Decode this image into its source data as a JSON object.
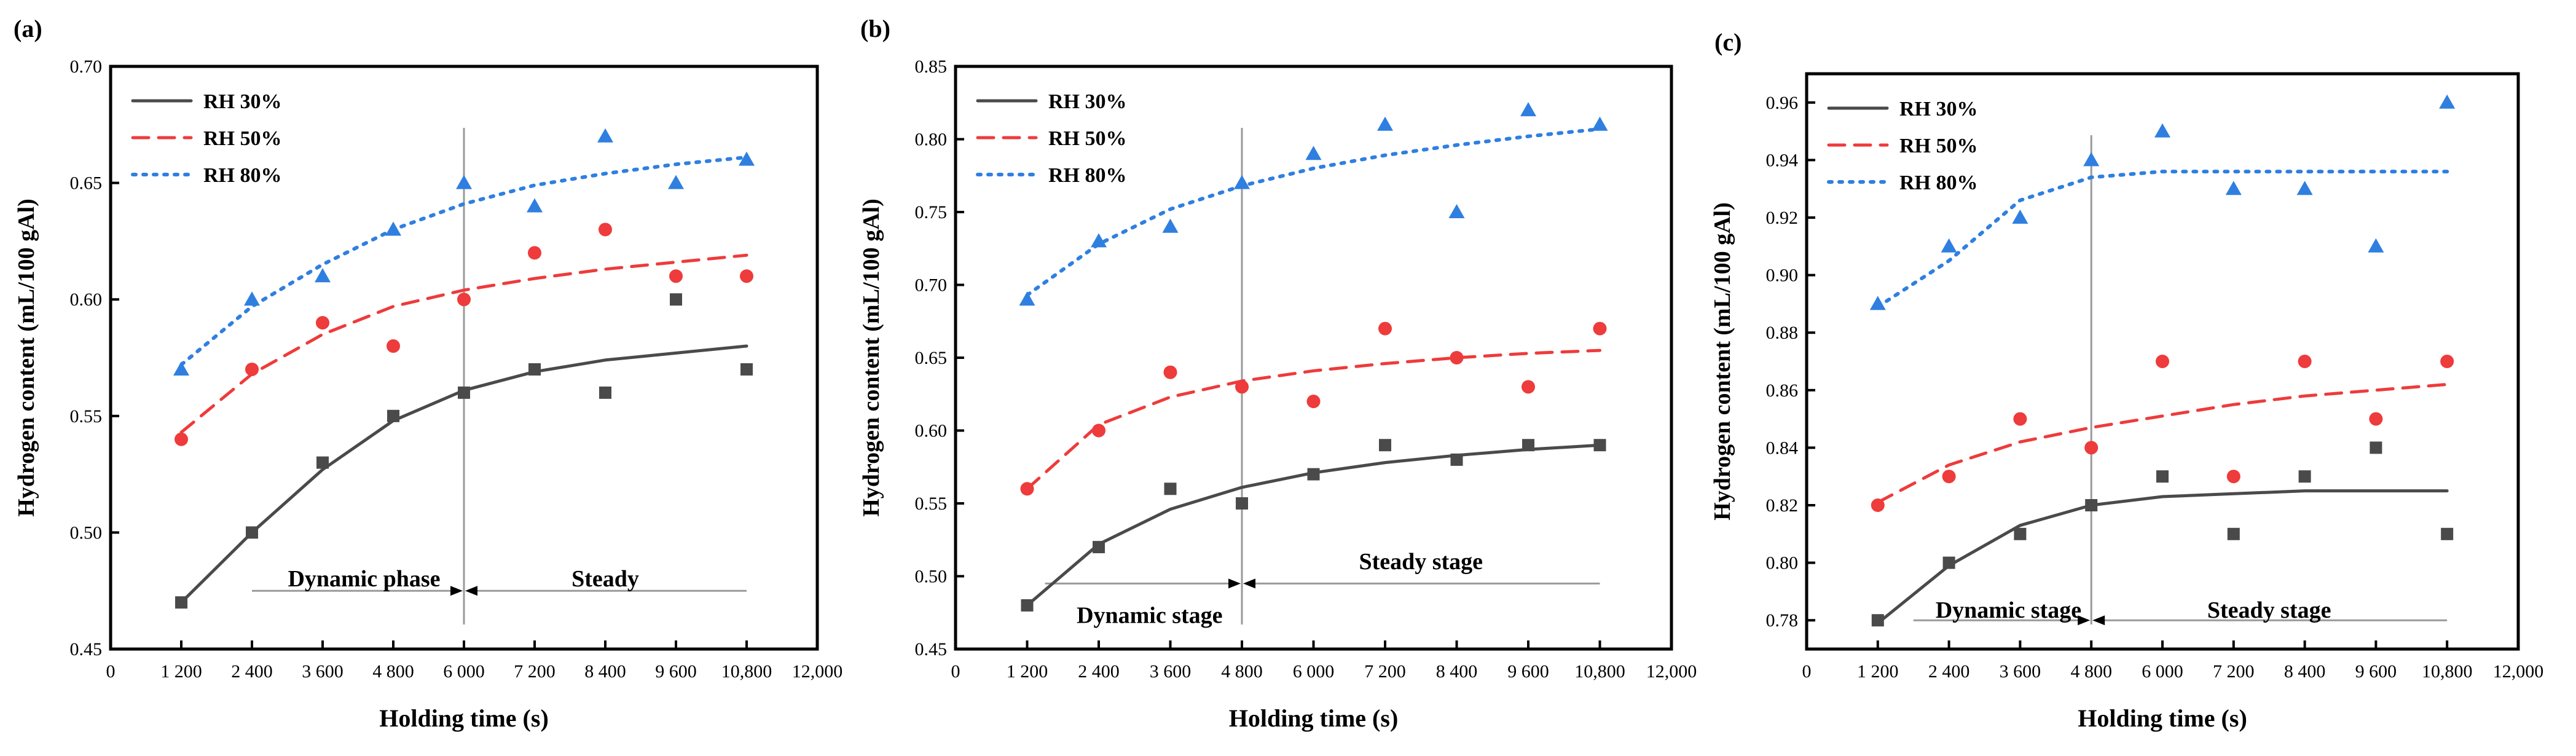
{
  "chart_data": [
    {
      "panel": "(a)",
      "type": "scatter",
      "xlabel": "Holding time (s)",
      "ylabel": "Hydrogen content (mL/100 gAl)",
      "xlim": [
        0,
        12000
      ],
      "ylim": [
        0.45,
        0.7
      ],
      "xticks": [
        0,
        1200,
        2400,
        3600,
        4800,
        6000,
        7200,
        8400,
        9600,
        10800,
        12000
      ],
      "xtick_labels": [
        "0",
        "1 200",
        "2 400",
        "3 600",
        "4 800",
        "6 000",
        "7 200",
        "8 400",
        "9 600",
        "10,800",
        "12,000"
      ],
      "yticks": [
        0.45,
        0.5,
        0.55,
        0.6,
        0.65,
        0.7
      ],
      "ytick_labels": [
        "0.45",
        "0.50",
        "0.55",
        "0.60",
        "0.65",
        "0.70"
      ],
      "x": [
        1200,
        2400,
        3600,
        4800,
        6000,
        7200,
        8400,
        9600,
        10800
      ],
      "series": [
        {
          "name": "RH 30%",
          "marker": "square",
          "color": "#4a4a4a",
          "values": [
            0.47,
            0.5,
            0.53,
            0.55,
            0.56,
            0.57,
            0.56,
            0.6,
            0.57
          ],
          "fit": [
            [
              1200,
              0.47
            ],
            [
              2400,
              0.5
            ],
            [
              3600,
              0.527
            ],
            [
              4800,
              0.548
            ],
            [
              6000,
              0.561
            ],
            [
              7200,
              0.569
            ],
            [
              8400,
              0.574
            ],
            [
              9600,
              0.577
            ],
            [
              10800,
              0.58
            ]
          ]
        },
        {
          "name": "RH 50%",
          "marker": "circle",
          "color": "#ee3b3b",
          "values": [
            0.54,
            0.57,
            0.59,
            0.58,
            0.6,
            0.62,
            0.63,
            0.61,
            0.61
          ],
          "fit": [
            [
              1200,
              0.543
            ],
            [
              2400,
              0.568
            ],
            [
              3600,
              0.585
            ],
            [
              4800,
              0.597
            ],
            [
              6000,
              0.604
            ],
            [
              7200,
              0.609
            ],
            [
              8400,
              0.613
            ],
            [
              9600,
              0.616
            ],
            [
              10800,
              0.619
            ]
          ]
        },
        {
          "name": "RH 80%",
          "marker": "triangle",
          "color": "#2f7fe0",
          "values": [
            0.57,
            0.6,
            0.61,
            0.63,
            0.65,
            0.64,
            0.67,
            0.65,
            0.66
          ],
          "fit": [
            [
              1200,
              0.572
            ],
            [
              2400,
              0.597
            ],
            [
              3600,
              0.615
            ],
            [
              4800,
              0.63
            ],
            [
              6000,
              0.641
            ],
            [
              7200,
              0.649
            ],
            [
              8400,
              0.654
            ],
            [
              9600,
              0.658
            ],
            [
              10800,
              0.661
            ]
          ]
        }
      ],
      "divider_x": 6000,
      "phase_y": 0.475,
      "phases": {
        "left": "Dynamic phase",
        "right": "Steady"
      },
      "phase_start": 2400,
      "phase_end": 10800,
      "label_y": 0.48
    },
    {
      "panel": "(b)",
      "type": "scatter",
      "xlabel": "Holding time (s)",
      "ylabel": "Hydrogen content (mL/100 gAl)",
      "xlim": [
        0,
        12000
      ],
      "ylim": [
        0.45,
        0.85
      ],
      "xticks": [
        0,
        1200,
        2400,
        3600,
        4800,
        6000,
        7200,
        8400,
        9600,
        10800,
        12000
      ],
      "xtick_labels": [
        "0",
        "1 200",
        "2 400",
        "3 600",
        "4 800",
        "6 000",
        "7 200",
        "8 400",
        "9 600",
        "10,800",
        "12,000"
      ],
      "yticks": [
        0.45,
        0.5,
        0.55,
        0.6,
        0.65,
        0.7,
        0.75,
        0.8,
        0.85
      ],
      "ytick_labels": [
        "0.45",
        "0.50",
        "0.55",
        "0.60",
        "0.65",
        "0.70",
        "0.75",
        "0.80",
        "0.85"
      ],
      "x": [
        1200,
        2400,
        3600,
        4800,
        6000,
        7200,
        8400,
        9600,
        10800
      ],
      "series": [
        {
          "name": "RH 30%",
          "marker": "square",
          "color": "#4a4a4a",
          "values": [
            0.48,
            0.52,
            0.56,
            0.55,
            0.57,
            0.59,
            0.58,
            0.59,
            0.59
          ],
          "fit": [
            [
              1200,
              0.48
            ],
            [
              2400,
              0.522
            ],
            [
              3600,
              0.546
            ],
            [
              4800,
              0.561
            ],
            [
              6000,
              0.571
            ],
            [
              7200,
              0.578
            ],
            [
              8400,
              0.583
            ],
            [
              9600,
              0.587
            ],
            [
              10800,
              0.59
            ]
          ]
        },
        {
          "name": "RH 50%",
          "marker": "circle",
          "color": "#ee3b3b",
          "values": [
            0.56,
            0.6,
            0.64,
            0.63,
            0.62,
            0.67,
            0.65,
            0.63,
            0.67
          ],
          "fit": [
            [
              1200,
              0.56
            ],
            [
              2400,
              0.604
            ],
            [
              3600,
              0.623
            ],
            [
              4800,
              0.634
            ],
            [
              6000,
              0.641
            ],
            [
              7200,
              0.646
            ],
            [
              8400,
              0.65
            ],
            [
              9600,
              0.653
            ],
            [
              10800,
              0.655
            ]
          ]
        },
        {
          "name": "RH 80%",
          "marker": "triangle",
          "color": "#2f7fe0",
          "values": [
            0.69,
            0.73,
            0.74,
            0.77,
            0.79,
            0.81,
            0.75,
            0.82,
            0.81
          ],
          "fit": [
            [
              1200,
              0.693
            ],
            [
              2400,
              0.728
            ],
            [
              3600,
              0.752
            ],
            [
              4800,
              0.768
            ],
            [
              6000,
              0.78
            ],
            [
              7200,
              0.789
            ],
            [
              8400,
              0.796
            ],
            [
              9600,
              0.802
            ],
            [
              10800,
              0.807
            ]
          ]
        }
      ],
      "divider_x": 4800,
      "phase_y": 0.495,
      "phases": {
        "left": "Dynamic stage",
        "right": "Steady stage"
      },
      "phase_start": 1500,
      "phase_end": 10800,
      "label_y_left": 0.473,
      "label_y_right": 0.51
    },
    {
      "panel": "(c)",
      "type": "scatter",
      "xlabel": "Holding time (s)",
      "ylabel": "Hydrogen content (mL/100 gAl)",
      "xlim": [
        0,
        12000
      ],
      "ylim": [
        0.77,
        0.97
      ],
      "xticks": [
        0,
        1200,
        2400,
        3600,
        4800,
        6000,
        7200,
        8400,
        9600,
        10800,
        12000
      ],
      "xtick_labels": [
        "0",
        "1 200",
        "2 400",
        "3 600",
        "4 800",
        "6 000",
        "7 200",
        "8 400",
        "9 600",
        "10,800",
        "12,000"
      ],
      "yticks": [
        0.78,
        0.8,
        0.82,
        0.84,
        0.86,
        0.88,
        0.9,
        0.92,
        0.94,
        0.96
      ],
      "ytick_labels": [
        "0.78",
        "0.80",
        "0.82",
        "0.84",
        "0.86",
        "0.88",
        "0.90",
        "0.92",
        "0.94",
        "0.96"
      ],
      "x": [
        1200,
        2400,
        3600,
        4800,
        6000,
        7200,
        8400,
        9600,
        10800
      ],
      "series": [
        {
          "name": "RH 30%",
          "marker": "square",
          "color": "#4a4a4a",
          "values": [
            0.78,
            0.8,
            0.81,
            0.82,
            0.83,
            0.81,
            0.83,
            0.84,
            0.81
          ],
          "fit": [
            [
              1200,
              0.779
            ],
            [
              2400,
              0.799
            ],
            [
              3600,
              0.813
            ],
            [
              4800,
              0.82
            ],
            [
              6000,
              0.823
            ],
            [
              7200,
              0.824
            ],
            [
              8400,
              0.825
            ],
            [
              9600,
              0.825
            ],
            [
              10800,
              0.825
            ]
          ]
        },
        {
          "name": "RH 50%",
          "marker": "circle",
          "color": "#ee3b3b",
          "values": [
            0.82,
            0.83,
            0.85,
            0.84,
            0.87,
            0.83,
            0.87,
            0.85,
            0.87
          ],
          "fit": [
            [
              1200,
              0.821
            ],
            [
              2400,
              0.834
            ],
            [
              3600,
              0.842
            ],
            [
              4800,
              0.847
            ],
            [
              6000,
              0.851
            ],
            [
              7200,
              0.855
            ],
            [
              8400,
              0.858
            ],
            [
              9600,
              0.86
            ],
            [
              10800,
              0.862
            ]
          ]
        },
        {
          "name": "RH 80%",
          "marker": "triangle",
          "color": "#2f7fe0",
          "values": [
            0.89,
            0.91,
            0.92,
            0.94,
            0.95,
            0.93,
            0.93,
            0.91,
            0.96
          ],
          "fit": [
            [
              1200,
              0.889
            ],
            [
              2400,
              0.905
            ],
            [
              3600,
              0.926
            ],
            [
              4800,
              0.934
            ],
            [
              6000,
              0.936
            ],
            [
              7200,
              0.936
            ],
            [
              8400,
              0.936
            ],
            [
              9600,
              0.936
            ],
            [
              10800,
              0.936
            ]
          ]
        }
      ],
      "divider_x": 4800,
      "phase_y": 0.78,
      "phases": {
        "left": "Dynamic stage",
        "right": "Steady stage"
      },
      "phase_start": 1800,
      "phase_end": 10800,
      "label_y": 0.7835
    }
  ]
}
